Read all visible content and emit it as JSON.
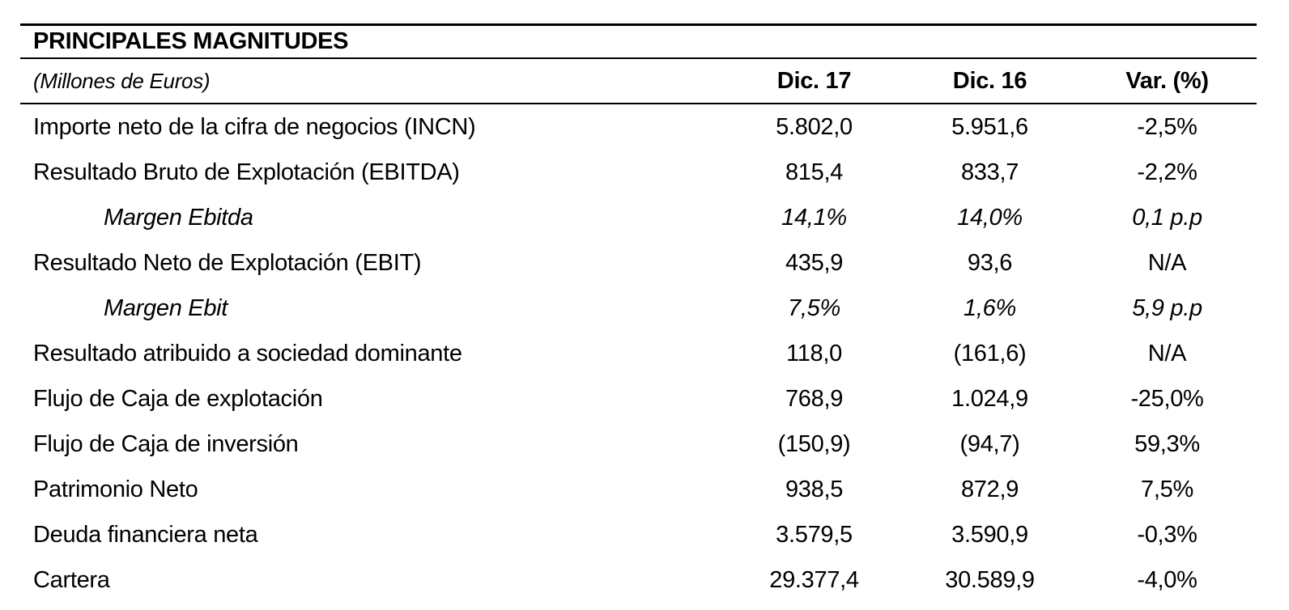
{
  "table": {
    "title": "PRINCIPALES MAGNITUDES",
    "unit_label": "(Millones de Euros)",
    "columns": [
      "Dic. 17",
      "Dic. 16",
      "Var. (%)"
    ],
    "rows": [
      {
        "label": "Importe neto de la cifra de negocios (INCN)",
        "dic17": "5.802,0",
        "dic16": "5.951,6",
        "var": "-2,5%",
        "indent": false
      },
      {
        "label": "Resultado Bruto de Explotación (EBITDA)",
        "dic17": "815,4",
        "dic16": "833,7",
        "var": "-2,2%",
        "indent": false
      },
      {
        "label": "Margen Ebitda",
        "dic17": "14,1%",
        "dic16": "14,0%",
        "var": "0,1 p.p",
        "indent": true
      },
      {
        "label": "Resultado Neto de Explotación (EBIT)",
        "dic17": "435,9",
        "dic16": "93,6",
        "var": "N/A",
        "indent": false
      },
      {
        "label": "Margen Ebit",
        "dic17": "7,5%",
        "dic16": "1,6%",
        "var": "5,9 p.p",
        "indent": true
      },
      {
        "label": "Resultado atribuido a sociedad dominante",
        "dic17": "118,0",
        "dic16": "(161,6)",
        "var": "N/A",
        "indent": false
      },
      {
        "label": "Flujo de Caja de explotación",
        "dic17": "768,9",
        "dic16": "1.024,9",
        "var": "-25,0%",
        "indent": false
      },
      {
        "label": "Flujo de Caja de inversión",
        "dic17": "(150,9)",
        "dic16": "(94,7)",
        "var": "59,3%",
        "indent": false
      },
      {
        "label": "Patrimonio Neto",
        "dic17": "938,5",
        "dic16": "872,9",
        "var": "7,5%",
        "indent": false
      },
      {
        "label": "Deuda financiera neta",
        "dic17": "3.579,5",
        "dic16": "3.590,9",
        "var": "-0,3%",
        "indent": false
      },
      {
        "label": "Cartera",
        "dic17": "29.377,4",
        "dic16": "30.589,9",
        "var": "-4,0%",
        "indent": false
      }
    ],
    "text_color": "#000000",
    "background_color": "#ffffff"
  }
}
